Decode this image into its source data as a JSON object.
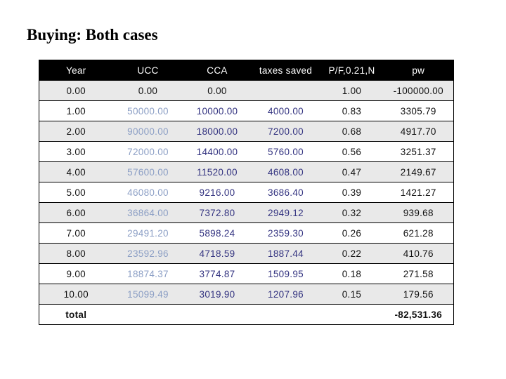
{
  "slide": {
    "title": "Buying: Both cases"
  },
  "table": {
    "columns": [
      {
        "key": "year",
        "label": "Year"
      },
      {
        "key": "ucc",
        "label": "UCC"
      },
      {
        "key": "cca",
        "label": "CCA"
      },
      {
        "key": "taxes",
        "label": "taxes saved"
      },
      {
        "key": "pf",
        "label": "P/F,0.21,N"
      },
      {
        "key": "pw",
        "label": "pw"
      }
    ],
    "rows": [
      {
        "year": "0.00",
        "ucc": "0.00",
        "cca": "0.00",
        "taxes": "",
        "pf": "1.00",
        "pw": "-100000.00"
      },
      {
        "year": "1.00",
        "ucc": "50000.00",
        "cca": "10000.00",
        "taxes": "4000.00",
        "pf": "0.83",
        "pw": "3305.79"
      },
      {
        "year": "2.00",
        "ucc": "90000.00",
        "cca": "18000.00",
        "taxes": "7200.00",
        "pf": "0.68",
        "pw": "4917.70"
      },
      {
        "year": "3.00",
        "ucc": "72000.00",
        "cca": "14400.00",
        "taxes": "5760.00",
        "pf": "0.56",
        "pw": "3251.37"
      },
      {
        "year": "4.00",
        "ucc": "57600.00",
        "cca": "11520.00",
        "taxes": "4608.00",
        "pf": "0.47",
        "pw": "2149.67"
      },
      {
        "year": "5.00",
        "ucc": "46080.00",
        "cca": "9216.00",
        "taxes": "3686.40",
        "pf": "0.39",
        "pw": "1421.27"
      },
      {
        "year": "6.00",
        "ucc": "36864.00",
        "cca": "7372.80",
        "taxes": "2949.12",
        "pf": "0.32",
        "pw": "939.68"
      },
      {
        "year": "7.00",
        "ucc": "29491.20",
        "cca": "5898.24",
        "taxes": "2359.30",
        "pf": "0.26",
        "pw": "621.28"
      },
      {
        "year": "8.00",
        "ucc": "23592.96",
        "cca": "4718.59",
        "taxes": "1887.44",
        "pf": "0.22",
        "pw": "410.76"
      },
      {
        "year": "9.00",
        "ucc": "18874.37",
        "cca": "3774.87",
        "taxes": "1509.95",
        "pf": "0.18",
        "pw": "271.58"
      },
      {
        "year": "10.00",
        "ucc": "15099.49",
        "cca": "3019.90",
        "taxes": "1207.96",
        "pf": "0.15",
        "pw": "179.56"
      }
    ],
    "total": {
      "label": "total",
      "year": "total",
      "ucc": "",
      "cca": "",
      "taxes": "",
      "pf": "",
      "pw": "-82,531.36"
    },
    "colors": {
      "header_bg": "#000000",
      "header_text": "#ffffff",
      "ucc_text": "#8c9fc5",
      "navy_text": "#333380",
      "base_text": "#111111",
      "stripe_bg": "#e9e9e9"
    }
  }
}
